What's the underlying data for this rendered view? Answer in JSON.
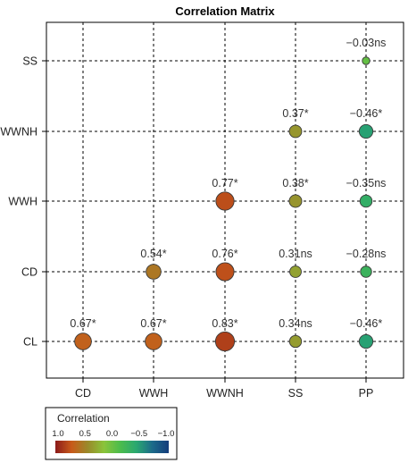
{
  "chart_data": {
    "type": "scatter",
    "subtype": "correlation-bubble-matrix",
    "title": "Correlation Matrix",
    "x_categories": [
      "CD",
      "WWH",
      "WWNH",
      "SS",
      "PP"
    ],
    "y_categories": [
      "CL",
      "CD",
      "WWH",
      "WWNH",
      "SS"
    ],
    "grid": true,
    "cells": [
      {
        "x": "CD",
        "y": "CL",
        "value": 0.67,
        "label": "0.67*"
      },
      {
        "x": "WWH",
        "y": "CL",
        "value": 0.67,
        "label": "0.67*"
      },
      {
        "x": "WWNH",
        "y": "CL",
        "value": 0.83,
        "label": "0.83*"
      },
      {
        "x": "SS",
        "y": "CL",
        "value": 0.34,
        "label": "0.34ns"
      },
      {
        "x": "PP",
        "y": "CL",
        "value": -0.46,
        "label": "−0.46*"
      },
      {
        "x": "WWH",
        "y": "CD",
        "value": 0.54,
        "label": "0.54*"
      },
      {
        "x": "WWNH",
        "y": "CD",
        "value": 0.76,
        "label": "0.76*"
      },
      {
        "x": "SS",
        "y": "CD",
        "value": 0.31,
        "label": "0.31ns"
      },
      {
        "x": "PP",
        "y": "CD",
        "value": -0.28,
        "label": "−0.28ns"
      },
      {
        "x": "WWNH",
        "y": "WWH",
        "value": 0.77,
        "label": "0.77*"
      },
      {
        "x": "SS",
        "y": "WWH",
        "value": 0.38,
        "label": "0.38*"
      },
      {
        "x": "PP",
        "y": "WWH",
        "value": -0.35,
        "label": "−0.35ns"
      },
      {
        "x": "SS",
        "y": "WWNH",
        "value": 0.37,
        "label": "0.37*"
      },
      {
        "x": "PP",
        "y": "WWNH",
        "value": -0.46,
        "label": "−0.46*"
      },
      {
        "x": "PP",
        "y": "SS",
        "value": -0.03,
        "label": "−0.03ns"
      }
    ],
    "legend": {
      "title": "Correlation",
      "position": "bottom-left",
      "ticks": [
        "1.0",
        "0.5",
        "0.0",
        "−0.5",
        "−1.0"
      ],
      "range": [
        1.0,
        -1.0
      ],
      "colors": [
        "#8b1a1a",
        "#c85a1a",
        "#9a8a2a",
        "#8ac43a",
        "#4cbc4c",
        "#2aa870",
        "#1c6a8a",
        "#143c7c"
      ]
    }
  }
}
